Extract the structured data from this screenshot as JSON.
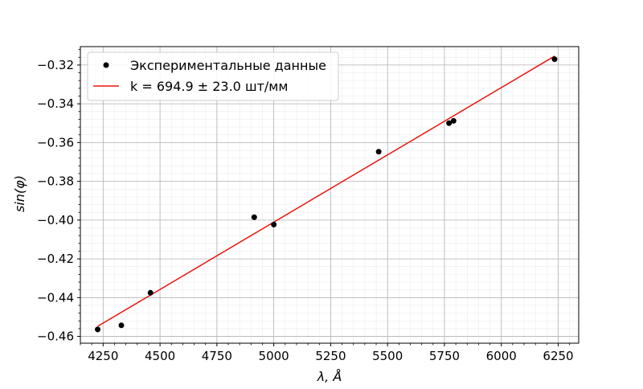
{
  "chart_data": {
    "type": "scatter",
    "xlabel": "λ, Å",
    "ylabel": "sin(φ)",
    "xlim": [
      4150,
      6340
    ],
    "ylim": [
      -0.4635,
      -0.3105
    ],
    "x_ticks": [
      4250,
      4500,
      4750,
      5000,
      5250,
      5500,
      5750,
      6000,
      6250
    ],
    "y_ticks": [
      -0.46,
      -0.44,
      -0.42,
      -0.4,
      -0.38,
      -0.36,
      -0.34,
      -0.32
    ],
    "x_tick_labels": [
      "4250",
      "4500",
      "4750",
      "5000",
      "5250",
      "5500",
      "5750",
      "6000",
      "6250"
    ],
    "y_tick_labels": [
      "−0.46",
      "−0.44",
      "−0.42",
      "−0.40",
      "−0.38",
      "−0.36",
      "−0.34",
      "−0.32"
    ],
    "grid": "major and minor",
    "legend_position": "top-left",
    "series": [
      {
        "name": "Экспериментальные данные",
        "kind": "points",
        "color": "#000000",
        "x": [
          4226,
          4330,
          4458,
          4914,
          5000,
          5461,
          5770,
          5790,
          6234
        ],
        "y": [
          -0.4564,
          -0.4543,
          -0.4375,
          -0.3985,
          -0.4023,
          -0.3647,
          -0.35,
          -0.3488,
          -0.317
        ]
      },
      {
        "name": "k = 694.9 ± 23.0 шт/мм",
        "kind": "line",
        "color": "#e8150e",
        "x": [
          4226,
          6234
        ],
        "y": [
          -0.4548,
          -0.3154
        ]
      }
    ]
  }
}
